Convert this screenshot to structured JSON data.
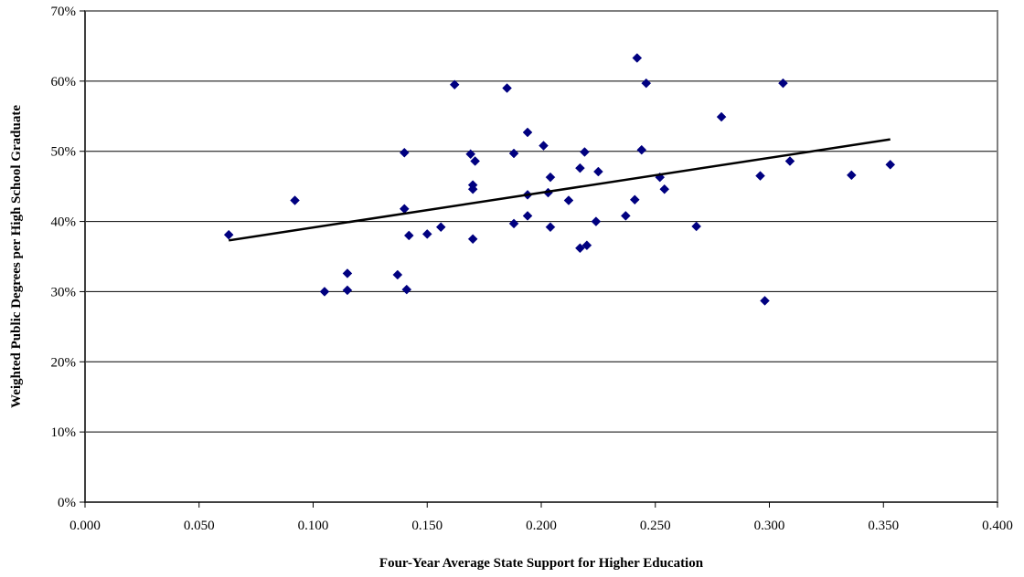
{
  "chart_data": {
    "type": "scatter",
    "title": "",
    "xlabel": "Four-Year Average State Support for Higher Education",
    "ylabel": "Weighted Public Degrees per High School Graduate",
    "xlim": [
      0,
      0.4
    ],
    "ylim": [
      0,
      0.7
    ],
    "x_ticks": [
      "0.000",
      "0.050",
      "0.100",
      "0.150",
      "0.200",
      "0.250",
      "0.300",
      "0.350",
      "0.400"
    ],
    "y_ticks": [
      "0%",
      "10%",
      "20%",
      "30%",
      "40%",
      "50%",
      "60%",
      "70%"
    ],
    "grid": "horizontal",
    "legend": "none",
    "marker": "diamond",
    "colors": {
      "points": "#000080",
      "trendline": "#000000",
      "gridline": "#000000",
      "plot_border": "#808080"
    },
    "series": [
      {
        "points": [
          [
            0.063,
            0.381
          ],
          [
            0.092,
            0.43
          ],
          [
            0.105,
            0.3
          ],
          [
            0.115,
            0.326
          ],
          [
            0.115,
            0.302
          ],
          [
            0.137,
            0.324
          ],
          [
            0.14,
            0.498
          ],
          [
            0.14,
            0.418
          ],
          [
            0.141,
            0.303
          ],
          [
            0.142,
            0.38
          ],
          [
            0.15,
            0.382
          ],
          [
            0.156,
            0.392
          ],
          [
            0.162,
            0.595
          ],
          [
            0.169,
            0.496
          ],
          [
            0.17,
            0.452
          ],
          [
            0.17,
            0.446
          ],
          [
            0.17,
            0.375
          ],
          [
            0.171,
            0.486
          ],
          [
            0.185,
            0.59
          ],
          [
            0.188,
            0.497
          ],
          [
            0.188,
            0.397
          ],
          [
            0.194,
            0.527
          ],
          [
            0.194,
            0.438
          ],
          [
            0.194,
            0.408
          ],
          [
            0.201,
            0.508
          ],
          [
            0.203,
            0.441
          ],
          [
            0.204,
            0.463
          ],
          [
            0.204,
            0.392
          ],
          [
            0.212,
            0.43
          ],
          [
            0.217,
            0.476
          ],
          [
            0.217,
            0.362
          ],
          [
            0.219,
            0.499
          ],
          [
            0.22,
            0.366
          ],
          [
            0.224,
            0.4
          ],
          [
            0.225,
            0.471
          ],
          [
            0.237,
            0.408
          ],
          [
            0.241,
            0.431
          ],
          [
            0.242,
            0.633
          ],
          [
            0.244,
            0.502
          ],
          [
            0.246,
            0.597
          ],
          [
            0.252,
            0.463
          ],
          [
            0.254,
            0.446
          ],
          [
            0.268,
            0.393
          ],
          [
            0.279,
            0.549
          ],
          [
            0.296,
            0.465
          ],
          [
            0.298,
            0.287
          ],
          [
            0.306,
            0.597
          ],
          [
            0.309,
            0.486
          ],
          [
            0.336,
            0.466
          ],
          [
            0.353,
            0.481
          ]
        ]
      }
    ],
    "trendline": {
      "x": [
        0.063,
        0.353
      ],
      "y": [
        0.373,
        0.517
      ]
    }
  }
}
